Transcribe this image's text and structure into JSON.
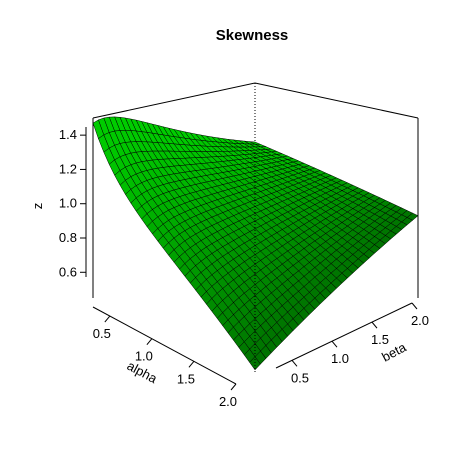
{
  "chart_data": {
    "type": "surface",
    "title": "Skewness",
    "xlabel": "alpha",
    "ylabel": "beta",
    "zlabel": "z",
    "x_range": [
      0.3,
      2.0
    ],
    "y_range": [
      0.3,
      2.0
    ],
    "z_range": [
      0.45,
      1.5
    ],
    "x_ticks": [
      "0.5",
      "1.0",
      "1.5",
      "2.0"
    ],
    "y_ticks": [
      "0.5",
      "1.0",
      "1.5",
      "2.0"
    ],
    "z_ticks": [
      "0.6",
      "0.8",
      "1.0",
      "1.2",
      "1.4"
    ],
    "corner_values": {
      "alpha_min_beta_min": 1.47,
      "alpha_min_beta_max": 1.02,
      "alpha_max_beta_min": 0.46,
      "alpha_max_beta_max": 0.93
    },
    "grid_resolution": 30,
    "colors": {
      "surface": "#00cc00",
      "edge": "#000000",
      "box": "#000000"
    }
  }
}
